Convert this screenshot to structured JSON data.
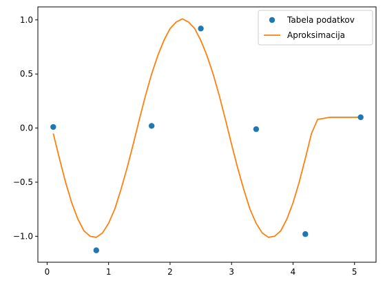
{
  "chart_data": {
    "type": "line",
    "title": "",
    "xlabel": "",
    "ylabel": "",
    "xlim": [
      -0.15,
      5.35
    ],
    "ylim": [
      -1.24,
      1.12
    ],
    "x_ticks": [
      0,
      1,
      2,
      3,
      4,
      5
    ],
    "y_ticks": [
      -1.0,
      -0.5,
      0.0,
      0.5,
      1.0
    ],
    "x_tick_labels": [
      "0",
      "1",
      "2",
      "3",
      "4",
      "5"
    ],
    "y_tick_labels": [
      "−1.0",
      "−0.5",
      "0.0",
      "0.5",
      "1.0"
    ],
    "grid": false,
    "legend_position": "top-right",
    "series": [
      {
        "name": "Tabela podatkov",
        "kind": "scatter",
        "color": "#1f77b4",
        "x": [
          0.1,
          0.8,
          1.7,
          2.5,
          3.4,
          4.2,
          5.1
        ],
        "y": [
          0.01,
          -1.13,
          0.02,
          0.92,
          -0.01,
          -0.98,
          0.1
        ]
      },
      {
        "name": "Aproksimacija",
        "kind": "line",
        "color": "#ff7f0e",
        "x": [
          0.1,
          0.2,
          0.3,
          0.4,
          0.5,
          0.6,
          0.7,
          0.8,
          0.9,
          1.0,
          1.1,
          1.2,
          1.3,
          1.4,
          1.5,
          1.6,
          1.7,
          1.8,
          1.9,
          2.0,
          2.1,
          2.2,
          2.3,
          2.4,
          2.5,
          2.6,
          2.7,
          2.8,
          2.9,
          3.0,
          3.1,
          3.2,
          3.3,
          3.4,
          3.5,
          3.6,
          3.7,
          3.8,
          3.9,
          4.0,
          4.1,
          4.2,
          4.3,
          4.4,
          4.5,
          4.6,
          4.7,
          4.8,
          4.9,
          5.0,
          5.1
        ],
        "y": [
          -0.05,
          -0.28,
          -0.5,
          -0.69,
          -0.84,
          -0.95,
          -1.0,
          -1.01,
          -0.97,
          -0.88,
          -0.75,
          -0.57,
          -0.37,
          -0.15,
          0.08,
          0.3,
          0.5,
          0.67,
          0.81,
          0.92,
          0.98,
          1.01,
          0.98,
          0.92,
          0.81,
          0.67,
          0.5,
          0.3,
          0.08,
          -0.15,
          -0.37,
          -0.57,
          -0.75,
          -0.88,
          -0.97,
          -1.01,
          -1.0,
          -0.95,
          -0.84,
          -0.69,
          -0.5,
          -0.28,
          -0.05,
          0.08,
          0.09,
          0.1,
          0.1,
          0.1,
          0.1,
          0.1,
          0.1
        ]
      }
    ]
  }
}
